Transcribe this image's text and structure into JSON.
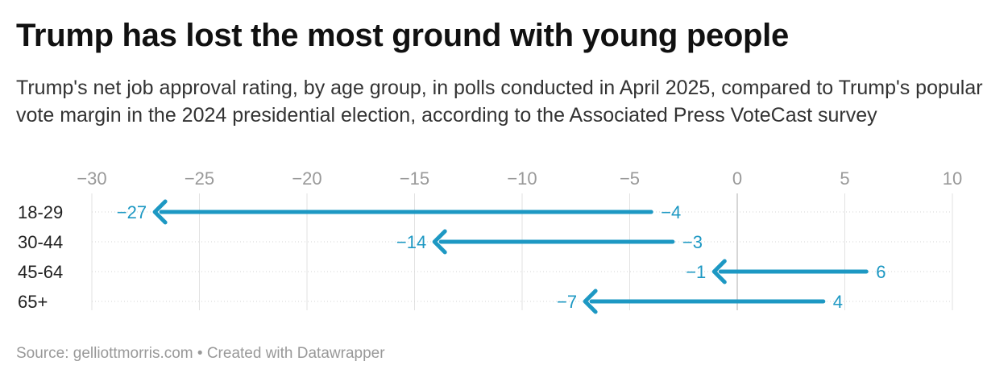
{
  "title": "Trump has lost the most ground with young people",
  "subtitle": "Trump's net job approval rating, by age group, in polls conducted in April 2025, compared to Trump's popular vote margin in the 2024 presidential election, according to the Associated Press VoteCast survey",
  "footer": "Source: gelliottmorris.com • Created with Datawrapper",
  "colors": {
    "arrow": "#1d98c3",
    "grid": "#e2e2e2",
    "zero_line": "#cccccc",
    "tick_text": "#999999"
  },
  "chart_data": {
    "type": "arrow",
    "title": "Trump has lost the most ground with young people",
    "xlim": [
      -30,
      10
    ],
    "ticks": [
      -30,
      -25,
      -20,
      -15,
      -10,
      -5,
      0,
      5,
      10
    ],
    "tick_labels": [
      "−30",
      "−25",
      "−20",
      "−15",
      "−10",
      "−5",
      "0",
      "5",
      "10"
    ],
    "axis_position": "top",
    "grid": true,
    "categories": [
      "18-29",
      "30-44",
      "45-64",
      "65+"
    ],
    "start_values": [
      -4,
      -3,
      6,
      4
    ],
    "end_values": [
      -27,
      -14,
      -1,
      -7
    ],
    "start_labels": [
      "−4",
      "−3",
      "6",
      "4"
    ],
    "end_labels": [
      "−27",
      "−14",
      "−1",
      "−7"
    ]
  }
}
